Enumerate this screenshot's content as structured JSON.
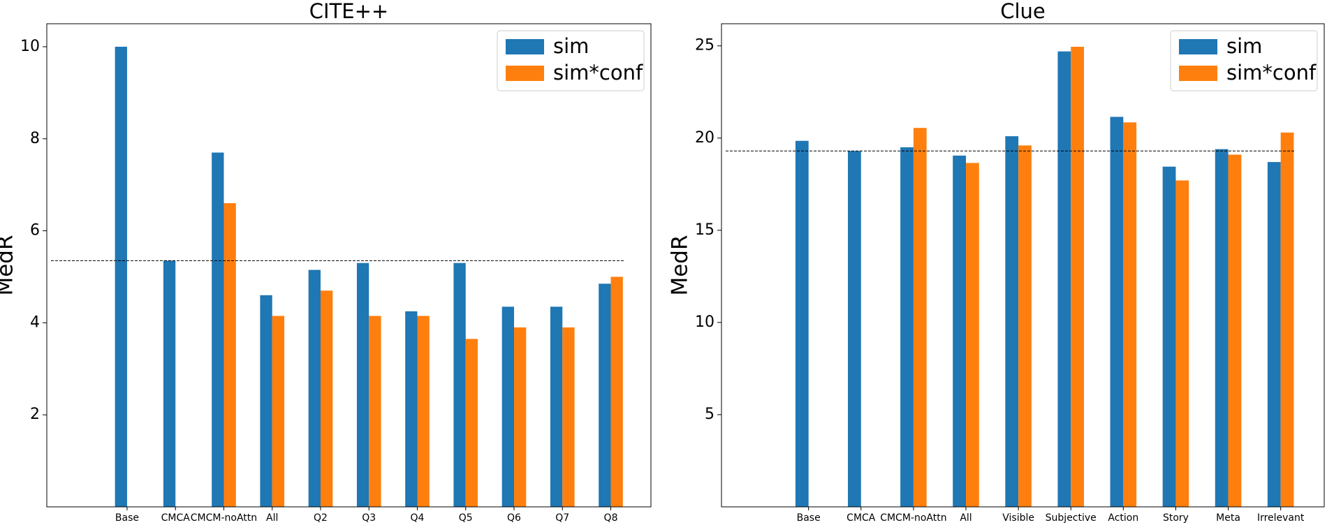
{
  "chart_data": [
    {
      "type": "bar",
      "title": "CITE++",
      "y_label": "MedR",
      "categories": [
        "Base",
        "CMCA",
        "CMCM-noAttn",
        "All",
        "Q2",
        "Q3",
        "Q4",
        "Q5",
        "Q6",
        "Q7",
        "Q8"
      ],
      "series": [
        {
          "name": "sim",
          "color": "#1f77b4",
          "values": [
            10,
            5.35,
            7.7,
            4.6,
            5.15,
            5.3,
            4.25,
            5.3,
            4.35,
            4.35,
            4.85
          ]
        },
        {
          "name": "sim*conf",
          "color": "#ff7f0e",
          "values": [
            null,
            null,
            6.6,
            4.15,
            4.7,
            4.15,
            4.15,
            3.65,
            3.9,
            3.9,
            5.0
          ]
        }
      ],
      "baseline": 5.35,
      "ylim": [
        0,
        10.5
      ],
      "yticks": [
        2,
        4,
        6,
        8,
        10
      ],
      "legend": "upper right"
    },
    {
      "type": "bar",
      "title": "Clue",
      "y_label": "MedR",
      "categories": [
        "Base",
        "CMCA",
        "CMCM-noAttn",
        "All",
        "Visible",
        "Subjective",
        "Action",
        "Story",
        "Meta",
        "Irrelevant"
      ],
      "series": [
        {
          "name": "sim",
          "color": "#1f77b4",
          "values": [
            19.85,
            19.3,
            19.5,
            19.05,
            20.1,
            24.7,
            21.15,
            18.45,
            19.4,
            18.7
          ]
        },
        {
          "name": "sim*conf",
          "color": "#ff7f0e",
          "values": [
            null,
            null,
            20.55,
            18.65,
            19.6,
            24.95,
            20.85,
            17.7,
            19.1,
            20.3
          ]
        }
      ],
      "baseline": 19.3,
      "ylim": [
        0,
        26.2
      ],
      "yticks": [
        5,
        10,
        15,
        20,
        25
      ],
      "legend": "upper right"
    }
  ]
}
